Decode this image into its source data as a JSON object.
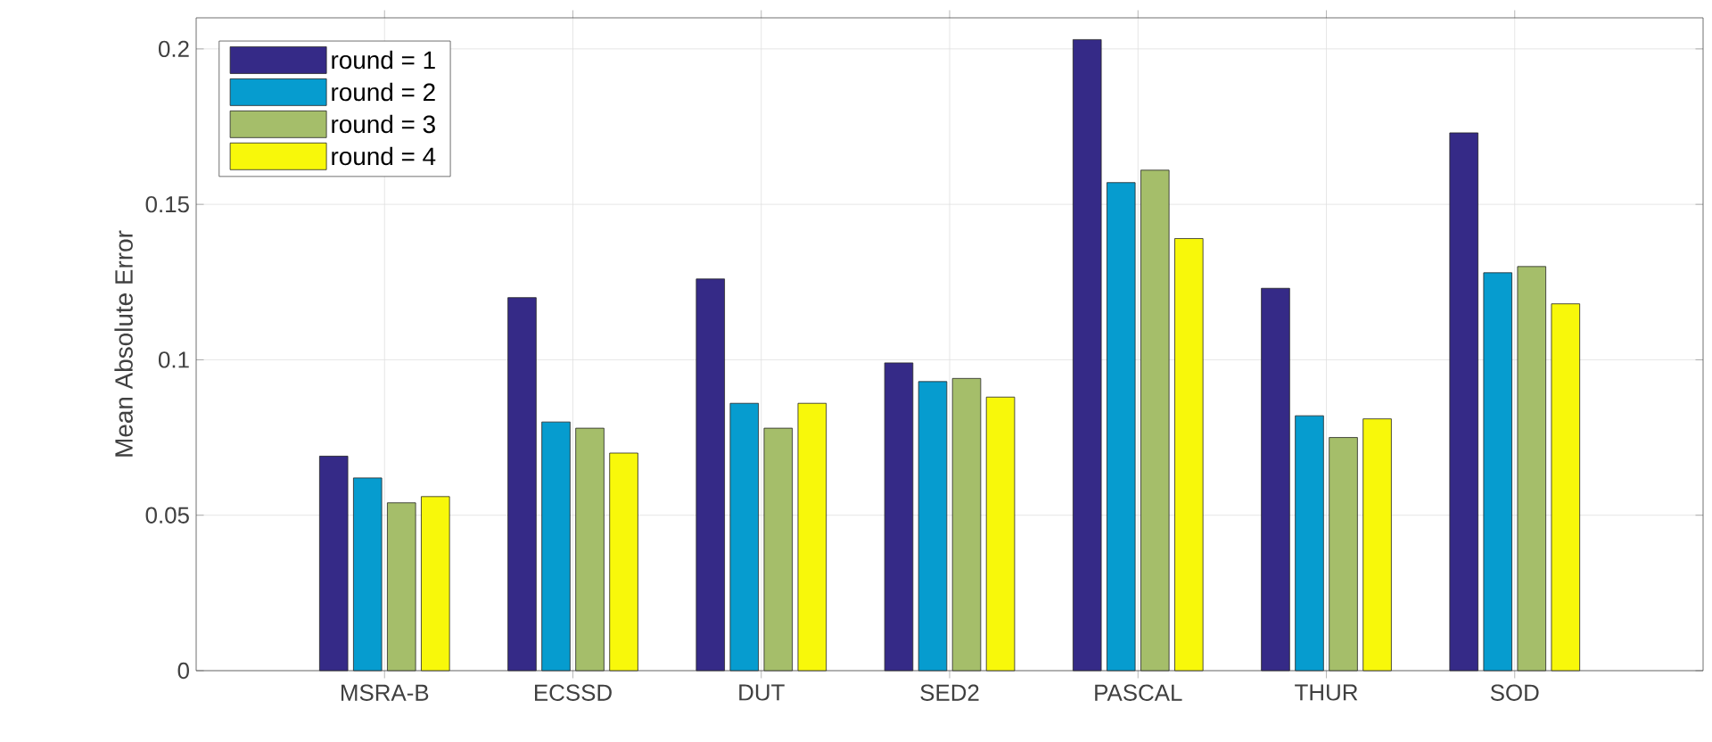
{
  "chart_data": {
    "type": "bar",
    "ylabel": "Mean Absolute Error",
    "categories": [
      "MSRA-B",
      "ECSSD",
      "DUT",
      "SED2",
      "PASCAL",
      "THUR",
      "SOD"
    ],
    "series": [
      {
        "name": "round = 1",
        "color": "#352a87",
        "values": [
          0.069,
          0.12,
          0.126,
          0.099,
          0.203,
          0.123,
          0.173
        ]
      },
      {
        "name": "round = 2",
        "color": "#069ccf",
        "values": [
          0.062,
          0.08,
          0.086,
          0.093,
          0.157,
          0.082,
          0.128
        ]
      },
      {
        "name": "round = 3",
        "color": "#a5be6a",
        "values": [
          0.054,
          0.078,
          0.078,
          0.094,
          0.161,
          0.075,
          0.13
        ]
      },
      {
        "name": "round = 4",
        "color": "#f8f80a",
        "values": [
          0.056,
          0.07,
          0.086,
          0.088,
          0.139,
          0.081,
          0.118
        ]
      }
    ],
    "ylim": [
      0,
      0.21
    ],
    "yticks": [
      0,
      0.05,
      0.1,
      0.15,
      0.2
    ],
    "grid": true,
    "legend": "top left"
  }
}
